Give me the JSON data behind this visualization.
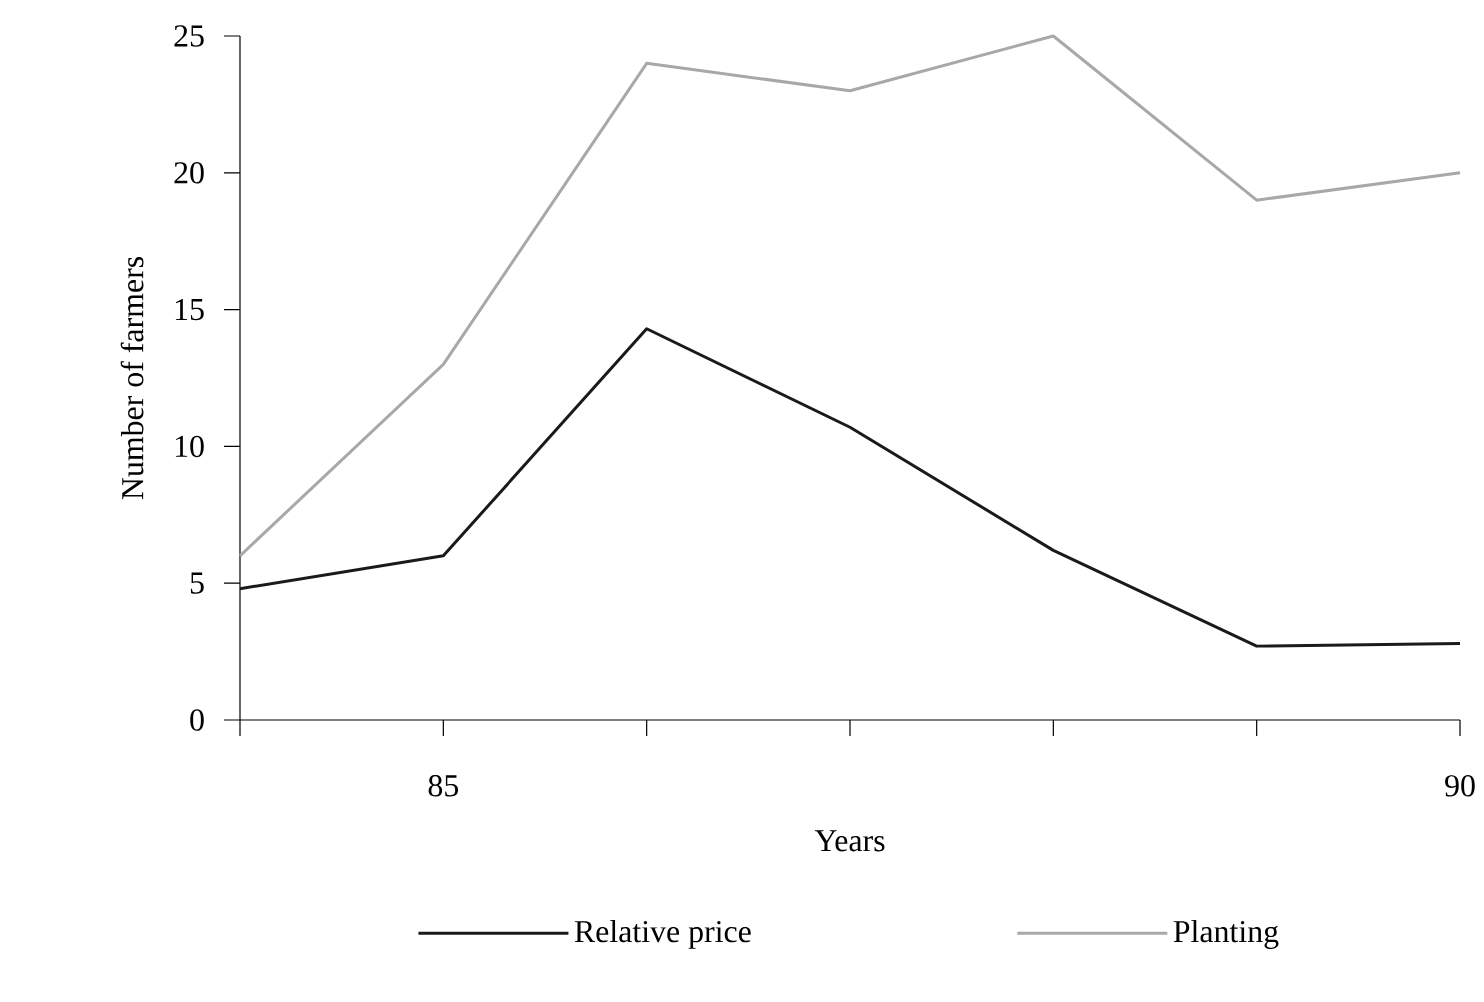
{
  "chart_data": {
    "type": "line",
    "xlabel": "Years",
    "ylabel": "Number of farmers",
    "categories": [
      null,
      "85",
      null,
      null,
      null,
      null,
      "90"
    ],
    "series": [
      {
        "name": "Relative price",
        "color": "#1a1a1a",
        "values": [
          4.8,
          6.0,
          14.3,
          10.7,
          6.2,
          2.7,
          2.8
        ]
      },
      {
        "name": "Planting",
        "color": "#a8a8aa",
        "values": [
          6.0,
          13.0,
          24.0,
          23.0,
          25.0,
          19.0,
          20.0
        ]
      }
    ],
    "ylim": [
      0,
      25
    ],
    "yticks": [
      0,
      5,
      10,
      15,
      20,
      25
    ],
    "legend": "bottom",
    "line_style": "solid"
  }
}
